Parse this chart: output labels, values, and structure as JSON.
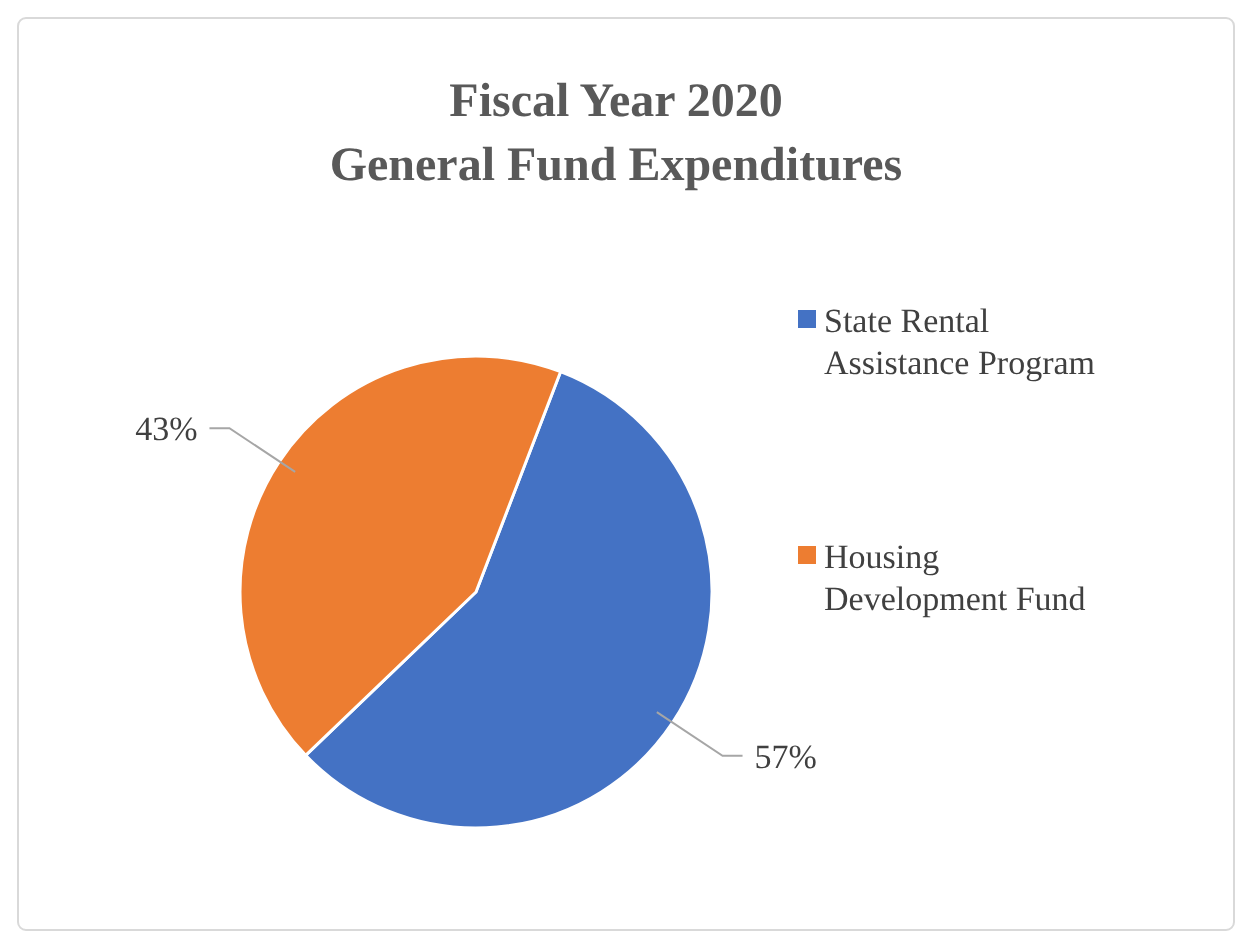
{
  "chart_data": {
    "type": "pie",
    "title": "Fiscal Year 2020\nGeneral Fund Expenditures",
    "categories": [
      "State Rental Assistance Program",
      "Housing Development Fund"
    ],
    "values": [
      57,
      43
    ],
    "colors": [
      "#4472c4",
      "#ed7d31"
    ],
    "value_labels": [
      "57%",
      "43%"
    ],
    "legend": "right"
  }
}
